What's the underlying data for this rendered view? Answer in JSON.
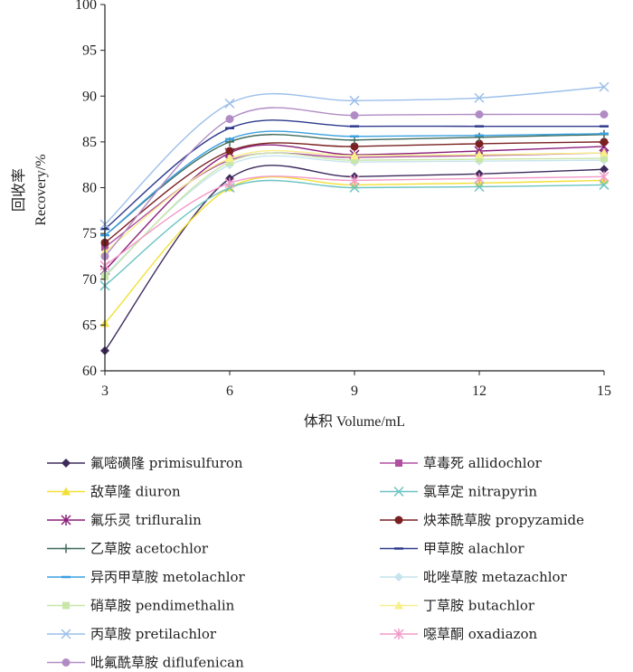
{
  "chart_data": {
    "type": "line",
    "xlabel": "体积 Volume/mL",
    "ylabel_cn": "回收率",
    "ylabel_en": "Recovery/%",
    "x": [
      3,
      6,
      9,
      12,
      15
    ],
    "xticks": [
      "3",
      "6",
      "9",
      "12",
      "15"
    ],
    "xlim": [
      3,
      15
    ],
    "ylim": [
      60,
      100
    ],
    "yticks": [
      "60",
      "65",
      "70",
      "75",
      "80",
      "85",
      "90",
      "95",
      "100"
    ],
    "grid": false,
    "legend_position": "bottom",
    "series": [
      {
        "name": "氟嘧磺隆 primisulfuron",
        "values": [
          62.2,
          81.0,
          81.2,
          81.5,
          82.0
        ],
        "color": "#3d2a5c",
        "marker": "diamond"
      },
      {
        "name": "草毒死 allidochlor",
        "values": [
          73.5,
          83.0,
          83.3,
          83.5,
          83.8
        ],
        "color": "#b04fa0",
        "marker": "square"
      },
      {
        "name": "敌草隆 diuron",
        "values": [
          65.2,
          80.0,
          80.3,
          80.5,
          80.8
        ],
        "color": "#f2e036",
        "marker": "triangle"
      },
      {
        "name": "氯草定 nitrapyrin",
        "values": [
          69.3,
          80.0,
          80.0,
          80.1,
          80.3
        ],
        "color": "#6cc3c3",
        "marker": "x"
      },
      {
        "name": "氟乐灵 trifluralin",
        "values": [
          71.0,
          83.8,
          83.6,
          84.0,
          84.5
        ],
        "color": "#8a1f7a",
        "marker": "star"
      },
      {
        "name": "炔苯酰草胺 propyzamide",
        "values": [
          74.0,
          84.0,
          84.5,
          84.8,
          85.0
        ],
        "color": "#7a2020",
        "marker": "circle"
      },
      {
        "name": "乙草胺 acetochlor",
        "values": [
          74.8,
          85.0,
          85.2,
          85.5,
          85.8
        ],
        "color": "#3f6b5a",
        "marker": "plus"
      },
      {
        "name": "甲草胺 alachlor",
        "values": [
          75.5,
          86.5,
          86.7,
          86.7,
          86.7
        ],
        "color": "#2e3a8c",
        "marker": "dash"
      },
      {
        "name": "异丙甲草胺 metolachlor",
        "values": [
          74.8,
          85.3,
          85.6,
          85.7,
          85.9
        ],
        "color": "#3aa0e0",
        "marker": "dash"
      },
      {
        "name": "吡唑草胺 metazachlor",
        "values": [
          70.5,
          82.5,
          82.8,
          82.9,
          83.0
        ],
        "color": "#c6e4ee",
        "marker": "diamond"
      },
      {
        "name": "硝草胺 pendimethalin",
        "values": [
          70.3,
          82.8,
          83.0,
          83.1,
          83.2
        ],
        "color": "#c8e6a8",
        "marker": "square"
      },
      {
        "name": "丁草胺 butachlor",
        "values": [
          73.0,
          83.2,
          83.5,
          83.6,
          83.8
        ],
        "color": "#f7ef8a",
        "marker": "triangle"
      },
      {
        "name": "丙草胺 pretilachlor",
        "values": [
          76.0,
          89.2,
          89.5,
          89.8,
          91.0
        ],
        "color": "#9cbfea",
        "marker": "x"
      },
      {
        "name": "噁草酮 oxadiazon",
        "values": [
          71.5,
          80.5,
          80.8,
          81.0,
          81.2
        ],
        "color": "#f29ac8",
        "marker": "star"
      },
      {
        "name": "吡氟酰草胺 diflufenican",
        "values": [
          72.5,
          87.5,
          87.9,
          88.0,
          88.0
        ],
        "color": "#b18cc4",
        "marker": "circle"
      }
    ]
  }
}
